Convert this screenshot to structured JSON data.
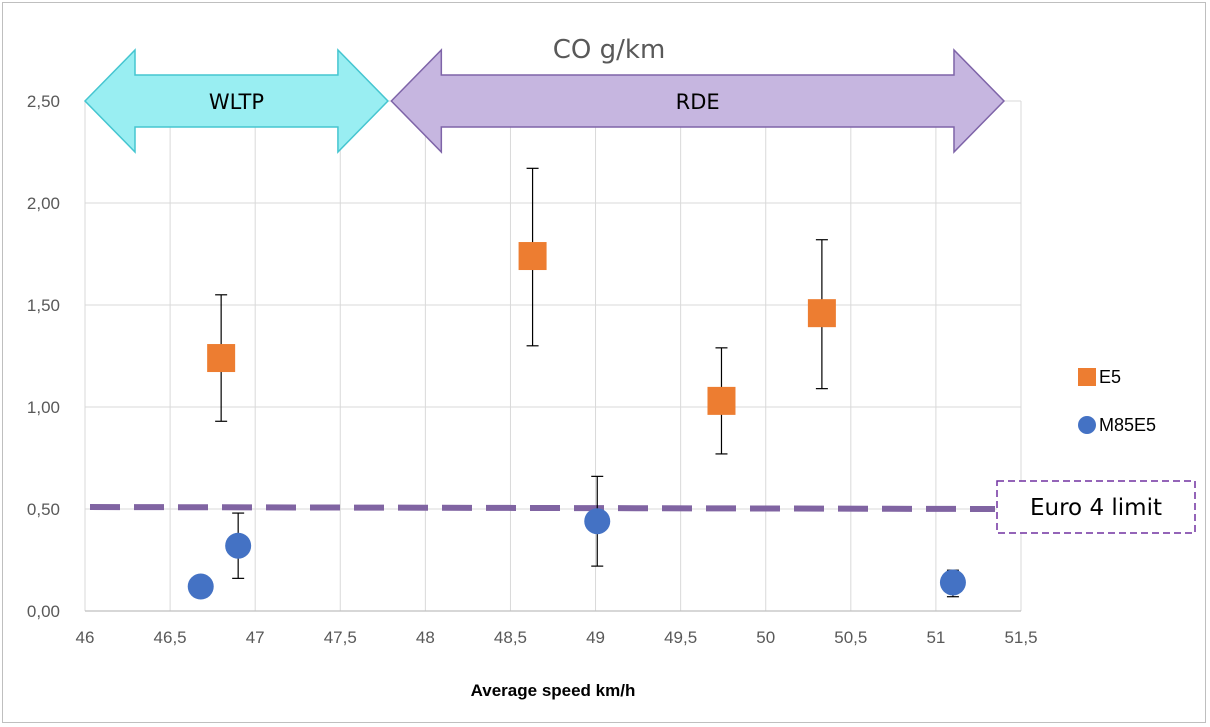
{
  "chart_data": {
    "type": "scatter",
    "title": "CO g/km",
    "xlabel": "Average speed km/h",
    "ylabel": "",
    "xlim": [
      46,
      51.5
    ],
    "ylim": [
      0,
      2.5
    ],
    "x_ticks": [
      "46",
      "46,5",
      "47",
      "47,5",
      "48",
      "48,5",
      "49",
      "49,5",
      "50",
      "50,5",
      "51",
      "51,5"
    ],
    "y_ticks": [
      "0,00",
      "0,50",
      "1,00",
      "1,50",
      "2,00",
      "2,50"
    ],
    "grid": true,
    "legend_position": "right",
    "series": [
      {
        "name": "E5",
        "marker": "square",
        "color": "#ED7D31",
        "points": [
          {
            "x": 46.8,
            "y": 1.24,
            "err_low": 0.93,
            "err_high": 1.55
          },
          {
            "x": 48.63,
            "y": 1.74,
            "err_low": 1.3,
            "err_high": 2.17
          },
          {
            "x": 49.74,
            "y": 1.03,
            "err_low": 0.77,
            "err_high": 1.29
          },
          {
            "x": 50.33,
            "y": 1.46,
            "err_low": 1.09,
            "err_high": 1.82
          }
        ]
      },
      {
        "name": "M85E5",
        "marker": "circle",
        "color": "#4472C4",
        "points": [
          {
            "x": 46.68,
            "y": 0.12,
            "err_low": null,
            "err_high": null
          },
          {
            "x": 46.9,
            "y": 0.32,
            "err_low": 0.16,
            "err_high": 0.48
          },
          {
            "x": 49.01,
            "y": 0.44,
            "err_low": 0.22,
            "err_high": 0.66
          },
          {
            "x": 51.1,
            "y": 0.14,
            "err_low": 0.07,
            "err_high": 0.2
          }
        ]
      }
    ],
    "reference_line": {
      "label": "Euro 4 limit",
      "y": 0.5,
      "color": "#8064A2"
    },
    "annotations": [
      {
        "label": "WLTP",
        "x_start": 46,
        "x_end": 47.78,
        "color": "#99EEF2",
        "border": "#45C5D0"
      },
      {
        "label": "RDE",
        "x_start": 47.8,
        "x_end": 51.4,
        "color": "#C6B6E0",
        "border": "#7E64A8"
      }
    ]
  }
}
